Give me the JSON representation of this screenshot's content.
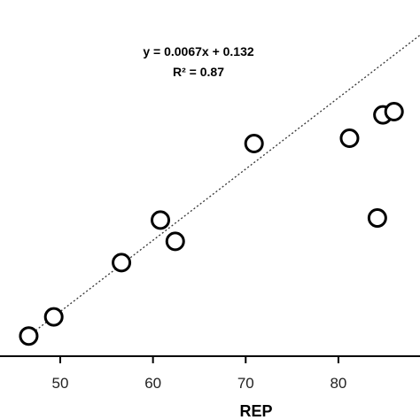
{
  "chart_data": {
    "type": "scatter",
    "title": "",
    "xlabel": "REP",
    "ylabel": "",
    "annotations": [
      "y = 0.0067x  + 0.132",
      "R² = 0.87"
    ],
    "x_ticks": [
      "50",
      "60",
      "70",
      "80"
    ],
    "xlim": [
      43.5,
      88.8
    ],
    "ylim": [
      0.425,
      0.74
    ],
    "grid": false,
    "legend": "none",
    "trendline": {
      "slope": 0.0067,
      "intercept": 0.132,
      "style": "dotted"
    },
    "series": [
      {
        "points": [
          {
            "x": 46.6,
            "y": 0.444
          },
          {
            "x": 49.3,
            "y": 0.462
          },
          {
            "x": 56.6,
            "y": 0.513
          },
          {
            "x": 60.8,
            "y": 0.553
          },
          {
            "x": 62.4,
            "y": 0.533
          },
          {
            "x": 70.9,
            "y": 0.625
          },
          {
            "x": 81.2,
            "y": 0.63
          },
          {
            "x": 84.2,
            "y": 0.555
          },
          {
            "x": 84.8,
            "y": 0.652
          },
          {
            "x": 86.0,
            "y": 0.655
          }
        ]
      }
    ],
    "colors": {
      "marker_stroke": "#000000",
      "marker_fill": "#ffffff",
      "axis": "#000000",
      "trendline": "#333333"
    }
  }
}
